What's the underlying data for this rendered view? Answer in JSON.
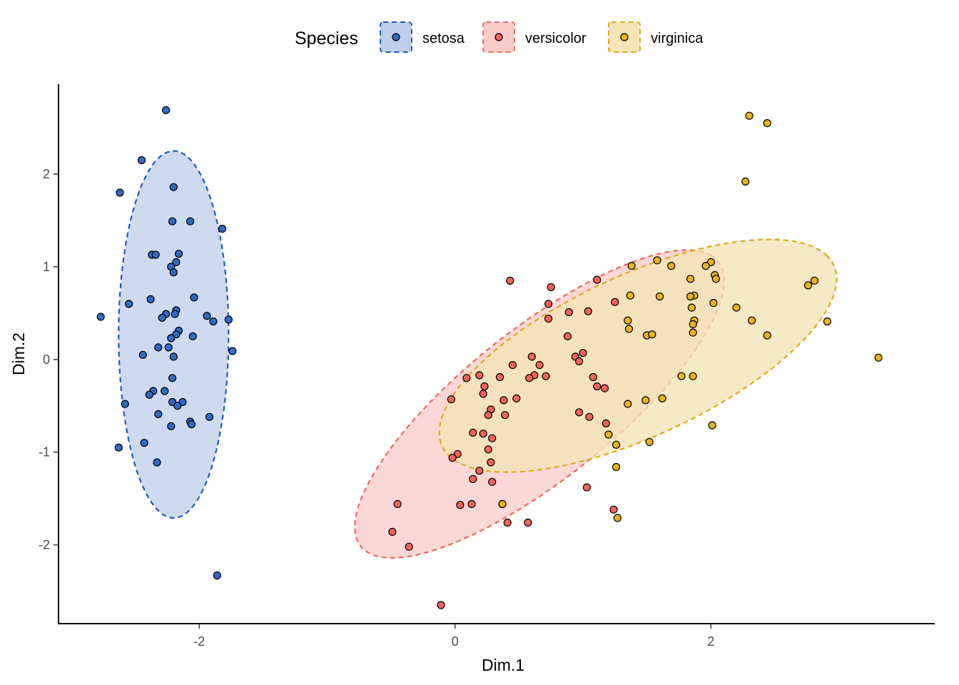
{
  "chart_data": {
    "type": "scatter",
    "title": "",
    "xlabel": "Dim.1",
    "ylabel": "Dim.2",
    "xlim": [
      -3.1,
      3.75
    ],
    "ylim": [
      -2.85,
      2.97
    ],
    "x_ticks": [
      -2,
      0,
      2
    ],
    "y_ticks": [
      -2,
      -1,
      0,
      1,
      2
    ],
    "x_tick_labels": [
      "-2",
      "0",
      "2"
    ],
    "y_tick_labels": [
      "-2",
      "-1",
      "0",
      "1",
      "2"
    ],
    "grid": false,
    "legend": {
      "title": "Species",
      "position": "top"
    },
    "series": [
      {
        "name": "setosa",
        "color": "#2E6BC4",
        "fill": "#BFCFEB",
        "stroke": "#1F5BC0",
        "ellipse": {
          "center": [
            -2.2,
            0.27
          ],
          "rx": 0.43,
          "ry": 1.98,
          "angle_deg": 0
        },
        "points": [
          [
            -2.26,
            2.69
          ],
          [
            -2.45,
            2.15
          ],
          [
            -2.2,
            1.86
          ],
          [
            -2.62,
            1.8
          ],
          [
            -2.21,
            1.49
          ],
          [
            -2.07,
            1.49
          ],
          [
            -1.82,
            1.41
          ],
          [
            -2.16,
            1.14
          ],
          [
            -2.37,
            1.13
          ],
          [
            -2.34,
            1.13
          ],
          [
            -2.18,
            1.05
          ],
          [
            -2.22,
            1.0
          ],
          [
            -2.2,
            0.94
          ],
          [
            -2.04,
            0.67
          ],
          [
            -2.38,
            0.65
          ],
          [
            -2.55,
            0.6
          ],
          [
            -2.18,
            0.53
          ],
          [
            -2.19,
            0.49
          ],
          [
            -2.26,
            0.49
          ],
          [
            -2.29,
            0.45
          ],
          [
            -2.77,
            0.46
          ],
          [
            -1.94,
            0.47
          ],
          [
            -1.77,
            0.43
          ],
          [
            -1.89,
            0.41
          ],
          [
            -2.16,
            0.31
          ],
          [
            -2.18,
            0.27
          ],
          [
            -2.22,
            0.23
          ],
          [
            -2.05,
            0.25
          ],
          [
            -2.32,
            0.13
          ],
          [
            -2.24,
            0.13
          ],
          [
            -1.74,
            0.09
          ],
          [
            -2.2,
            0.03
          ],
          [
            -2.44,
            0.05
          ],
          [
            -2.21,
            -0.2
          ],
          [
            -2.27,
            -0.34
          ],
          [
            -2.36,
            -0.34
          ],
          [
            -2.39,
            -0.38
          ],
          [
            -2.21,
            -0.46
          ],
          [
            -2.13,
            -0.46
          ],
          [
            -2.17,
            -0.5
          ],
          [
            -2.58,
            -0.48
          ],
          [
            -2.32,
            -0.59
          ],
          [
            -2.07,
            -0.67
          ],
          [
            -2.06,
            -0.7
          ],
          [
            -2.22,
            -0.72
          ],
          [
            -1.92,
            -0.62
          ],
          [
            -2.43,
            -0.9
          ],
          [
            -2.63,
            -0.95
          ],
          [
            -2.33,
            -1.11
          ],
          [
            -1.86,
            -2.33
          ]
        ]
      },
      {
        "name": "versicolor",
        "color": "#F2635A",
        "fill": "#FACDCB",
        "stroke": "#EE6A5E",
        "ellipse": {
          "center": [
            0.66,
            -0.48
          ],
          "rx": 2.09,
          "ry": 0.69,
          "angle_deg": 50
        },
        "points": [
          [
            0.43,
            0.85
          ],
          [
            0.75,
            0.78
          ],
          [
            1.11,
            0.86
          ],
          [
            0.73,
            0.6
          ],
          [
            0.89,
            0.51
          ],
          [
            1.04,
            0.52
          ],
          [
            0.73,
            0.44
          ],
          [
            1.25,
            0.62
          ],
          [
            0.88,
            0.25
          ],
          [
            0.6,
            0.03
          ],
          [
            0.66,
            -0.06
          ],
          [
            0.62,
            -0.17
          ],
          [
            0.45,
            -0.06
          ],
          [
            0.71,
            -0.18
          ],
          [
            0.58,
            -0.2
          ],
          [
            1.0,
            0.07
          ],
          [
            0.94,
            0.03
          ],
          [
            0.97,
            -0.02
          ],
          [
            0.19,
            -0.17
          ],
          [
            0.09,
            -0.2
          ],
          [
            0.35,
            -0.19
          ],
          [
            0.23,
            -0.29
          ],
          [
            0.22,
            -0.37
          ],
          [
            1.08,
            -0.19
          ],
          [
            1.11,
            -0.29
          ],
          [
            1.17,
            -0.31
          ],
          [
            0.48,
            -0.42
          ],
          [
            0.38,
            -0.44
          ],
          [
            -0.03,
            -0.43
          ],
          [
            0.28,
            -0.54
          ],
          [
            0.26,
            -0.6
          ],
          [
            0.39,
            -0.6
          ],
          [
            0.97,
            -0.57
          ],
          [
            1.05,
            -0.62
          ],
          [
            1.18,
            -0.69
          ],
          [
            0.14,
            -0.79
          ],
          [
            0.22,
            -0.8
          ],
          [
            0.29,
            -0.85
          ],
          [
            0.26,
            -0.97
          ],
          [
            0.02,
            -1.02
          ],
          [
            -0.02,
            -1.06
          ],
          [
            0.28,
            -1.11
          ],
          [
            0.19,
            -1.2
          ],
          [
            0.14,
            -1.29
          ],
          [
            0.29,
            -1.32
          ],
          [
            1.03,
            -1.38
          ],
          [
            -0.45,
            -1.56
          ],
          [
            0.04,
            -1.57
          ],
          [
            0.13,
            -1.56
          ],
          [
            0.37,
            -1.56
          ],
          [
            1.24,
            -1.62
          ],
          [
            0.41,
            -1.76
          ],
          [
            0.57,
            -1.76
          ],
          [
            -0.49,
            -1.86
          ],
          [
            -0.36,
            -2.02
          ],
          [
            -0.11,
            -2.65
          ]
        ]
      },
      {
        "name": "virginica",
        "color": "#E7B321",
        "fill": "#F4E4B6",
        "stroke": "#DDAA1B",
        "ellipse": {
          "center": [
            1.43,
            0.04
          ],
          "rx": 1.83,
          "ry": 0.8,
          "angle_deg": 36
        },
        "points": [
          [
            2.3,
            2.63
          ],
          [
            2.44,
            2.55
          ],
          [
            2.27,
            1.92
          ],
          [
            1.58,
            1.07
          ],
          [
            2.0,
            1.05
          ],
          [
            1.96,
            1.01
          ],
          [
            1.69,
            1.01
          ],
          [
            1.38,
            1.01
          ],
          [
            2.03,
            0.91
          ],
          [
            2.04,
            0.87
          ],
          [
            1.84,
            0.87
          ],
          [
            2.81,
            0.85
          ],
          [
            2.76,
            0.8
          ],
          [
            1.37,
            0.69
          ],
          [
            1.87,
            0.69
          ],
          [
            1.6,
            0.68
          ],
          [
            1.84,
            0.68
          ],
          [
            2.02,
            0.61
          ],
          [
            2.2,
            0.56
          ],
          [
            1.85,
            0.56
          ],
          [
            1.35,
            0.42
          ],
          [
            1.87,
            0.42
          ],
          [
            1.86,
            0.38
          ],
          [
            2.32,
            0.42
          ],
          [
            2.91,
            0.41
          ],
          [
            1.36,
            0.33
          ],
          [
            1.86,
            0.29
          ],
          [
            1.5,
            0.26
          ],
          [
            1.54,
            0.27
          ],
          [
            2.44,
            0.26
          ],
          [
            3.31,
            0.02
          ],
          [
            1.77,
            -0.18
          ],
          [
            1.86,
            -0.18
          ],
          [
            1.49,
            -0.44
          ],
          [
            1.62,
            -0.42
          ],
          [
            1.35,
            -0.48
          ],
          [
            2.01,
            -0.71
          ],
          [
            1.2,
            -0.81
          ],
          [
            1.26,
            -0.92
          ],
          [
            1.52,
            -0.89
          ],
          [
            1.26,
            -1.16
          ],
          [
            0.37,
            -1.56
          ],
          [
            1.27,
            -1.71
          ]
        ]
      }
    ]
  }
}
